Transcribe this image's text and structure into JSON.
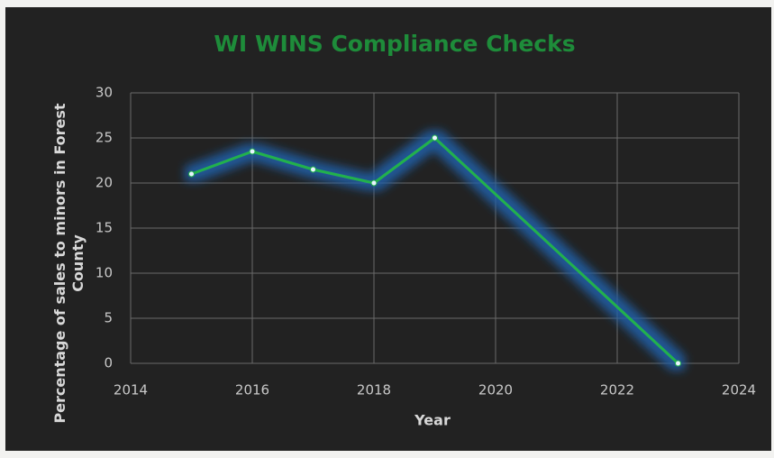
{
  "chart_data": {
    "type": "line",
    "title": "WI WINS Compliance Checks",
    "x_label": "Year",
    "y_label": "Percentage of sales to minors in Forest County",
    "x": [
      2015,
      2016,
      2017,
      2018,
      2019,
      2023
    ],
    "series": [
      {
        "name": "Percentage of sales to minors in Forest County",
        "color": "#22b14c",
        "values": [
          21,
          23.5,
          21.5,
          20,
          25,
          0
        ]
      }
    ],
    "xlim": [
      2014,
      2024
    ],
    "xticks": [
      2014,
      2016,
      2018,
      2020,
      2022,
      2024
    ],
    "ylim": [
      0,
      30
    ],
    "yticks": [
      0,
      5,
      10,
      15,
      20,
      25,
      30
    ],
    "grid": true
  }
}
